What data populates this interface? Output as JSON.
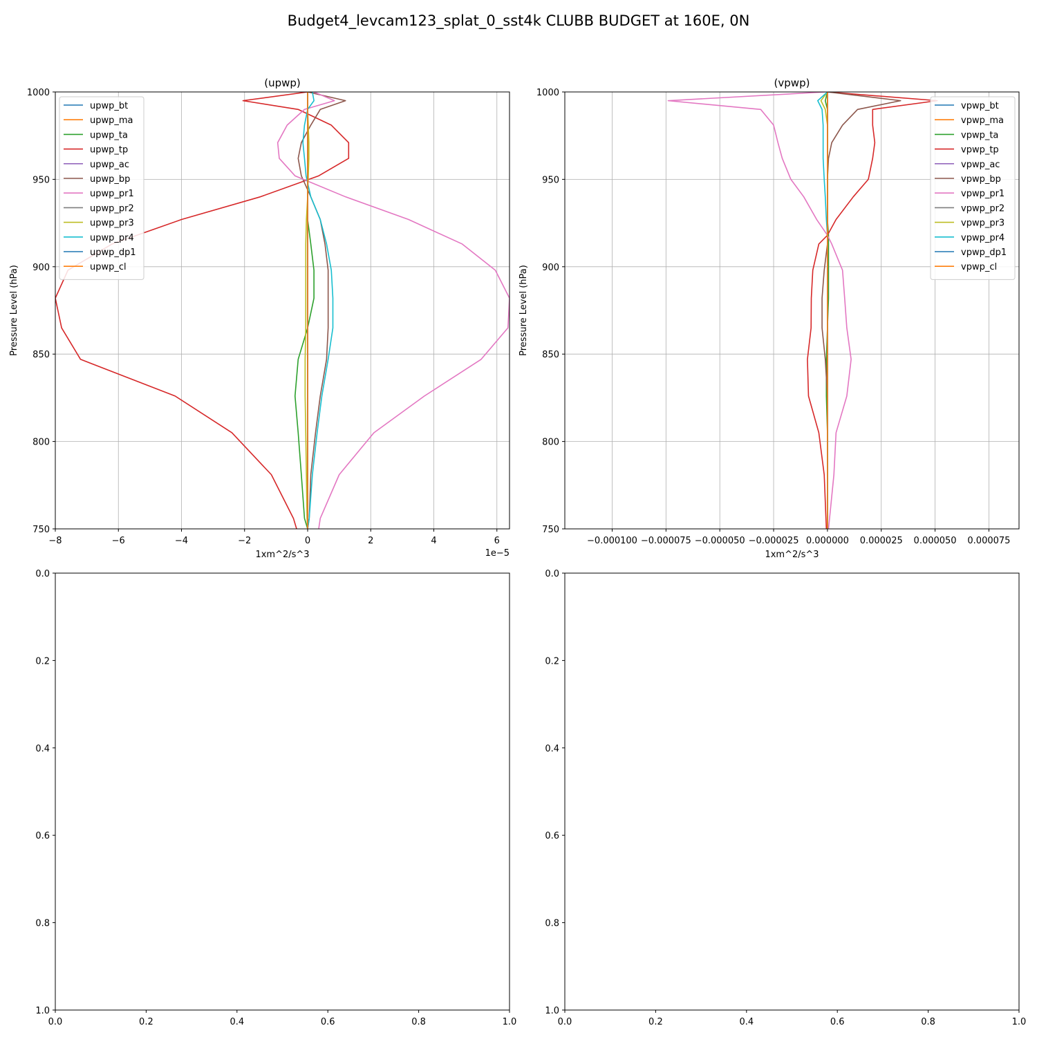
{
  "figure": {
    "suptitle": "Budget4_levcam123_splat_0_sst4k CLUBB BUDGET at 160E, 0N"
  },
  "colors": [
    "#1f77b4",
    "#ff7f0e",
    "#2ca02c",
    "#d62728",
    "#9467bd",
    "#8c564b",
    "#e377c2",
    "#7f7f7f",
    "#bcbd22",
    "#17becf",
    "#1f77b4",
    "#ff7f0e"
  ],
  "chart_data": [
    {
      "type": "line",
      "title": "(upwp)",
      "xlabel": "1xm^2/s^3",
      "ylabel": "Pressure Level (hPa)",
      "x_offset_text": "1e−5",
      "xlim": [
        -8e-05,
        6.4e-05
      ],
      "ylim": [
        1000,
        750
      ],
      "xticks": [
        -8e-05,
        -6e-05,
        -4e-05,
        -2e-05,
        0,
        2e-05,
        4e-05,
        6e-05
      ],
      "xtick_labels": [
        "−8",
        "−6",
        "−4",
        "−2",
        "0",
        "2",
        "4",
        "6"
      ],
      "yticks": [
        750,
        800,
        850,
        900,
        950,
        1000
      ],
      "ytick_labels": [
        "750",
        "800",
        "850",
        "900",
        "950",
        "1000"
      ],
      "grid": true,
      "legend_loc": "upper-left",
      "y": [
        750,
        756,
        781,
        805,
        826,
        847,
        865,
        882,
        898,
        913,
        927,
        940,
        952,
        962,
        971,
        981,
        990,
        995,
        1000
      ],
      "series": [
        {
          "name": "upwp_bt",
          "values": [
            0,
            0,
            0,
            0,
            0,
            0,
            0,
            0,
            0,
            0,
            0,
            0,
            0,
            0,
            0,
            0,
            0,
            0,
            0
          ]
        },
        {
          "name": "upwp_ma",
          "values": [
            0,
            0,
            0,
            0,
            0,
            0,
            0,
            0,
            0,
            0,
            0,
            0,
            0,
            0,
            0,
            0,
            0,
            0,
            0
          ]
        },
        {
          "name": "upwp_ta",
          "values": [
            0,
            -1e-06,
            -2e-06,
            -3e-06,
            -4e-06,
            -3e-06,
            0,
            2e-06,
            2e-06,
            1e-06,
            0,
            0,
            0,
            0,
            0,
            0,
            0,
            0,
            0
          ]
        },
        {
          "name": "upwp_tp",
          "values": [
            -3.5e-06,
            -4.5e-06,
            -1.15e-05,
            -2.4e-05,
            -4.2e-05,
            -7.2e-05,
            -7.8e-05,
            -8e-05,
            -7.6e-05,
            -6.2e-05,
            -4e-05,
            -1.5e-05,
            3.5e-06,
            1.3e-05,
            1.3e-05,
            7.5e-06,
            -3e-06,
            -2.05e-05,
            0
          ]
        },
        {
          "name": "upwp_ac",
          "values": [
            0,
            0,
            0,
            0,
            0,
            0,
            0,
            0,
            0,
            0,
            0,
            0,
            0,
            0,
            0,
            0,
            0,
            0,
            0
          ]
        },
        {
          "name": "upwp_bp",
          "values": [
            0,
            5e-07,
            1e-06,
            2.5e-06,
            4e-06,
            6e-06,
            6.5e-06,
            6.5e-06,
            6.5e-06,
            5.5e-06,
            4e-06,
            1e-06,
            -2e-06,
            -3e-06,
            -2e-06,
            1e-06,
            4e-06,
            1.2e-05,
            0
          ]
        },
        {
          "name": "upwp_pr1",
          "values": [
            3.5e-06,
            4e-06,
            1e-05,
            2.1e-05,
            3.7e-05,
            5.5e-05,
            6.35e-05,
            6.4e-05,
            5.95e-05,
            4.9e-05,
            3.2e-05,
            1.2e-05,
            -4e-06,
            -9e-06,
            -9.5e-06,
            -6.5e-06,
            -1e-06,
            8.5e-06,
            2e-06
          ]
        },
        {
          "name": "upwp_pr2",
          "values": [
            0,
            0,
            0,
            0,
            0,
            0,
            0,
            0,
            0,
            0,
            0,
            0,
            0,
            0,
            0,
            0,
            0,
            0,
            0
          ]
        },
        {
          "name": "upwp_pr3",
          "values": [
            0,
            -2e-07,
            -4e-07,
            -6e-07,
            -8e-07,
            -8e-07,
            -6e-07,
            -6e-07,
            -6e-07,
            -6e-07,
            -4e-07,
            0,
            2e-07,
            4e-07,
            4e-07,
            2e-07,
            0,
            0,
            0
          ]
        },
        {
          "name": "upwp_pr4",
          "values": [
            0,
            5e-07,
            1.5e-06,
            3e-06,
            4.5e-06,
            6.5e-06,
            8e-06,
            8e-06,
            7.5e-06,
            6e-06,
            4e-06,
            1e-06,
            -5e-07,
            -1e-06,
            -1.5e-06,
            -1e-06,
            0,
            2e-06,
            1.5e-06
          ]
        },
        {
          "name": "upwp_dp1",
          "values": [
            0,
            0,
            0,
            0,
            0,
            0,
            0,
            0,
            0,
            0,
            0,
            0,
            0,
            0,
            0,
            0,
            0,
            0,
            0
          ]
        },
        {
          "name": "upwp_cl",
          "values": [
            0,
            0,
            0,
            0,
            0,
            0,
            0,
            0,
            0,
            0,
            0,
            0,
            0,
            0,
            0,
            0,
            0,
            0,
            0
          ]
        }
      ]
    },
    {
      "type": "line",
      "title": "(vpwp)",
      "xlabel": "1xm^2/s^3",
      "ylabel": "Pressure Level (hPa)",
      "x_offset_text": "",
      "xlim": [
        -0.000122,
        8.9e-05
      ],
      "ylim": [
        1000,
        750
      ],
      "xticks": [
        -0.0001,
        -7.5e-05,
        -5e-05,
        -2.5e-05,
        0,
        2.5e-05,
        5e-05,
        7.5e-05
      ],
      "xtick_labels": [
        "−0.000100",
        "−0.000075",
        "−0.000050",
        "−0.000025",
        "0.000000",
        "0.000025",
        "0.000050",
        "0.000075"
      ],
      "yticks": [
        750,
        800,
        850,
        900,
        950,
        1000
      ],
      "ytick_labels": [
        "750",
        "800",
        "850",
        "900",
        "950",
        "1000"
      ],
      "grid": true,
      "legend_loc": "upper-right",
      "y": [
        750,
        781,
        805,
        826,
        847,
        865,
        882,
        898,
        913,
        918,
        927,
        940,
        950,
        962,
        971,
        981,
        990,
        995,
        1000
      ],
      "series": [
        {
          "name": "vpwp_bt",
          "values": [
            0,
            0,
            0,
            0,
            0,
            0,
            0,
            0,
            0,
            0,
            0,
            0,
            0,
            0,
            0,
            0,
            0,
            0,
            0
          ]
        },
        {
          "name": "vpwp_ma",
          "values": [
            0,
            0,
            0,
            0,
            0,
            0,
            0,
            0,
            0,
            0,
            0,
            0,
            0,
            0,
            0,
            0,
            0,
            0,
            0
          ]
        },
        {
          "name": "vpwp_ta",
          "values": [
            0,
            0,
            0,
            -5e-07,
            -5e-07,
            0,
            5e-07,
            5e-07,
            5e-07,
            5e-07,
            0,
            0,
            0,
            0,
            0,
            0,
            0,
            -1e-06,
            0
          ]
        },
        {
          "name": "vpwp_tp",
          "values": [
            -5e-07,
            -1.5e-06,
            -4e-06,
            -8.8e-06,
            -9.3e-06,
            -7.6e-06,
            -7.5e-06,
            -6.8e-06,
            -4e-06,
            0,
            4e-06,
            1.2e-05,
            1.9e-05,
            2.1e-05,
            2.2e-05,
            2.1e-05,
            2.1e-05,
            5.1e-05,
            0
          ]
        },
        {
          "name": "vpwp_ac",
          "values": [
            0,
            0,
            0,
            0,
            0,
            0,
            0,
            0,
            0,
            0,
            0,
            0,
            0,
            0,
            0,
            0,
            0,
            0,
            0
          ]
        },
        {
          "name": "vpwp_bp",
          "values": [
            0,
            0,
            0,
            0,
            -1e-06,
            -2.5e-06,
            -2.5e-06,
            -1.5e-06,
            0,
            0,
            0,
            0,
            0,
            5e-07,
            2e-06,
            7e-06,
            1.4e-05,
            3.4e-05,
            0
          ]
        },
        {
          "name": "vpwp_pr1",
          "values": [
            5e-07,
            3e-06,
            4e-06,
            9e-06,
            1.1e-05,
            9e-06,
            8e-06,
            7e-06,
            2e-06,
            0,
            -5e-06,
            -1.1e-05,
            -1.7e-05,
            -2.1e-05,
            -2.3e-05,
            -2.5e-05,
            -3.1e-05,
            -7.4e-05,
            -1e-06
          ]
        },
        {
          "name": "vpwp_pr2",
          "values": [
            0,
            0,
            0,
            0,
            0,
            0,
            0,
            0,
            0,
            0,
            0,
            0,
            0,
            0,
            0,
            0,
            0,
            0,
            0
          ]
        },
        {
          "name": "vpwp_pr3",
          "values": [
            0,
            0,
            0,
            0,
            0,
            0,
            0,
            0,
            0,
            0,
            0,
            0,
            0,
            0,
            0,
            0,
            -1e-06,
            -3e-06,
            0
          ]
        },
        {
          "name": "vpwp_pr4",
          "values": [
            0,
            0,
            0,
            0,
            0,
            0,
            0,
            0,
            0,
            0,
            -5e-07,
            -1e-06,
            -1.5e-06,
            -2e-06,
            -2e-06,
            -2e-06,
            -2.5e-06,
            -4.5e-06,
            0
          ]
        },
        {
          "name": "vpwp_dp1",
          "values": [
            0,
            0,
            0,
            0,
            0,
            0,
            0,
            0,
            0,
            0,
            0,
            0,
            0,
            0,
            0,
            0,
            0,
            0,
            0
          ]
        },
        {
          "name": "vpwp_cl",
          "values": [
            0,
            0,
            0,
            0,
            0,
            0,
            0,
            0,
            0,
            0,
            0,
            0,
            0,
            0,
            0,
            0,
            0,
            0,
            0
          ]
        }
      ]
    },
    {
      "type": "line",
      "title": "",
      "xlim": [
        0,
        1
      ],
      "ylim": [
        0,
        1
      ],
      "xticks": [
        0,
        0.2,
        0.4,
        0.6,
        0.8,
        1.0
      ],
      "xtick_labels": [
        "0.0",
        "0.2",
        "0.4",
        "0.6",
        "0.8",
        "1.0"
      ],
      "yticks": [
        0,
        0.2,
        0.4,
        0.6,
        0.8,
        1.0
      ],
      "ytick_labels": [
        "0.0",
        "0.2",
        "0.4",
        "0.6",
        "0.8",
        "1.0"
      ],
      "grid": false,
      "series": []
    },
    {
      "type": "line",
      "title": "",
      "xlim": [
        0,
        1
      ],
      "ylim": [
        0,
        1
      ],
      "xticks": [
        0,
        0.2,
        0.4,
        0.6,
        0.8,
        1.0
      ],
      "xtick_labels": [
        "0.0",
        "0.2",
        "0.4",
        "0.6",
        "0.8",
        "1.0"
      ],
      "yticks": [
        0,
        0.2,
        0.4,
        0.6,
        0.8,
        1.0
      ],
      "ytick_labels": [
        "0.0",
        "0.2",
        "0.4",
        "0.6",
        "0.8",
        "1.0"
      ],
      "grid": false,
      "series": []
    }
  ]
}
